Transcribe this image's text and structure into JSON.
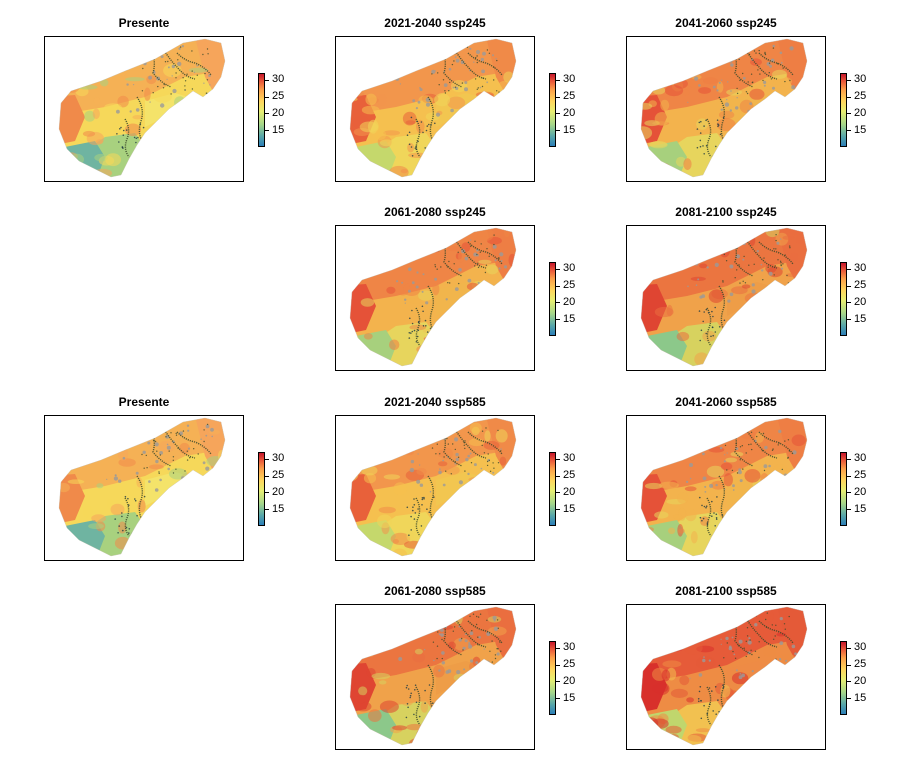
{
  "panels": [
    {
      "id": "presente-ssp245",
      "title": "Presente",
      "palette": "base"
    },
    {
      "id": "2021-2040-ssp245",
      "title": "2021-2040 ssp245",
      "palette": "warm1"
    },
    {
      "id": "2041-2060-ssp245",
      "title": "2041-2060 ssp245",
      "palette": "warm2"
    },
    {
      "id": "2061-2080-ssp245",
      "title": "2061-2080 ssp245",
      "palette": "warm2"
    },
    {
      "id": "2081-2100-ssp245",
      "title": "2081-2100 ssp245",
      "palette": "warm3"
    },
    {
      "id": "presente-ssp585",
      "title": "Presente",
      "palette": "base"
    },
    {
      "id": "2021-2040-ssp585",
      "title": "2021-2040 ssp585",
      "palette": "warm1"
    },
    {
      "id": "2041-2060-ssp585",
      "title": "2041-2060 ssp585",
      "palette": "warm2"
    },
    {
      "id": "2061-2080-ssp585",
      "title": "2061-2080 ssp585",
      "palette": "warm3"
    },
    {
      "id": "2081-2100-ssp585",
      "title": "2081-2100 ssp585",
      "palette": "warm4"
    }
  ],
  "legend": {
    "ticks": [
      "30",
      "25",
      "20",
      "15"
    ],
    "scale_min": 10,
    "scale_max": 32
  },
  "colors": {
    "low": "#2c7fb8",
    "mid_low": "#a6d68a",
    "mid": "#e8ef72",
    "mid_high": "#fca04a",
    "high": "#c5152b",
    "dark_patches": "#3b4a2a",
    "grey_patches": "#9a9a9a"
  }
}
